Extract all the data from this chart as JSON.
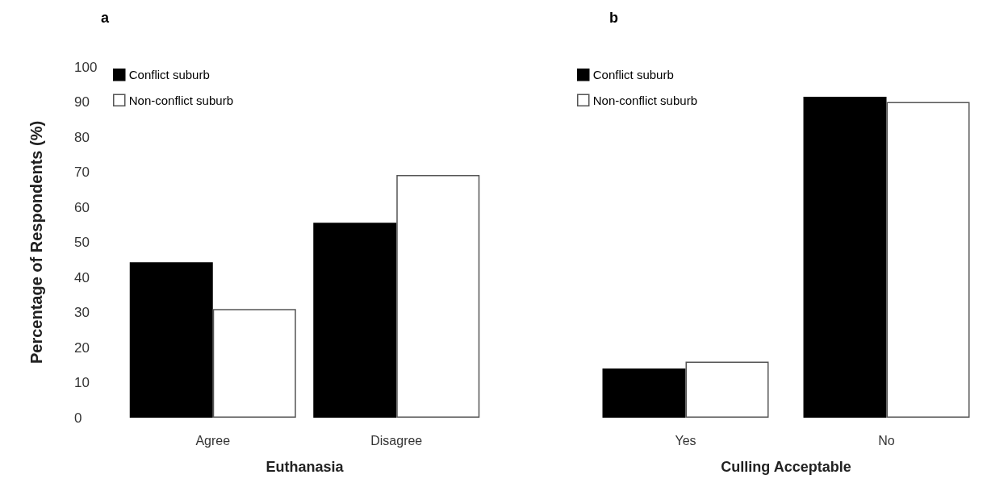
{
  "chart_data": [
    {
      "type": "bar",
      "title": "a",
      "xlabel": "Euthanasia",
      "ylabel": "Percentage of Respondents (%)",
      "categories": [
        "Agree",
        "Disagree"
      ],
      "series": [
        {
          "name": "Conflict suburb",
          "color": "#000000",
          "values": [
            44.3,
            55.6
          ]
        },
        {
          "name": "Non-conflict suburb",
          "color": "#ffffff",
          "values": [
            31,
            69.2
          ]
        }
      ],
      "ylim": [
        0,
        100
      ],
      "yticks": [
        0,
        10,
        20,
        30,
        40,
        50,
        60,
        70,
        80,
        90,
        100
      ],
      "legend": "top left",
      "grid": false
    },
    {
      "type": "bar",
      "title": "b",
      "xlabel": "Culling Acceptable",
      "categories": [
        "Yes",
        "No"
      ],
      "series": [
        {
          "name": "Conflict suburb",
          "color": "#000000",
          "values": [
            14,
            91.5
          ]
        },
        {
          "name": "Non-conflict suburb",
          "color": "#ffffff",
          "values": [
            16,
            90
          ]
        }
      ],
      "ylim": [
        0,
        100
      ],
      "tick_labels": "x",
      "legend": "top left",
      "grid": false
    }
  ]
}
